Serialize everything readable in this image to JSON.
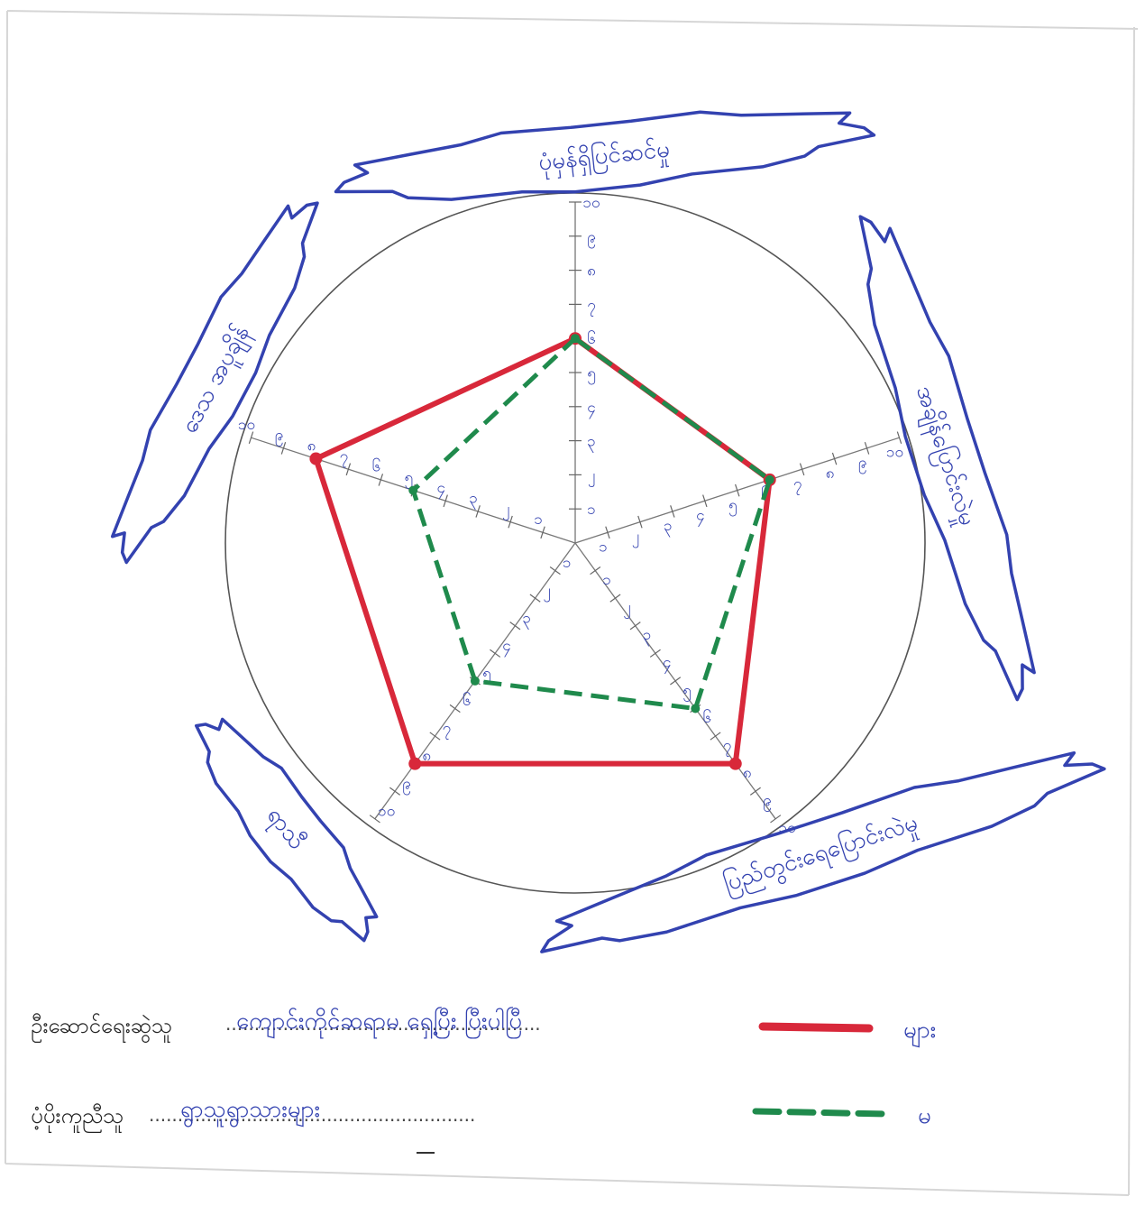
{
  "chart_data": {
    "type": "radar",
    "axes": [
      "ပုံမှန်ရှိပြင်ဆင်မှု",
      "အချိန်ပြောင်းလဲမှု",
      "ပြည်တွင်းရေပြောင်းလဲမှု",
      "ရာသီ",
      "ဒေသ အပူချိန်"
    ],
    "tick_values": [
      1,
      2,
      3,
      4,
      5,
      6,
      7,
      8,
      9,
      10
    ],
    "tick_labels": [
      "၁",
      "၂",
      "၃",
      "၄",
      "၅",
      "၆",
      "၇",
      "၈",
      "၉",
      "၁၀"
    ],
    "rmax": 10,
    "series": [
      {
        "name": "များ",
        "values": [
          6,
          6,
          8,
          8,
          8
        ],
        "color": "#d8283a",
        "style": "solid"
      },
      {
        "name": "မ",
        "values": [
          6,
          6,
          6,
          5,
          5
        ],
        "color": "#1f8a4c",
        "style": "dashed"
      }
    ],
    "legend_position": "bottom-right"
  },
  "footer": {
    "rows": [
      {
        "label": "ဦးဆောင်ရေးဆွဲသူ",
        "value": "ကျောင်းကိုင်ဆရာမ ရှေ့ပြီး ပြီးပါပြီ"
      },
      {
        "label": "ပံ့ပိုးကူညီသူ",
        "value": "ရွာသူရွာသားများ"
      }
    ]
  }
}
